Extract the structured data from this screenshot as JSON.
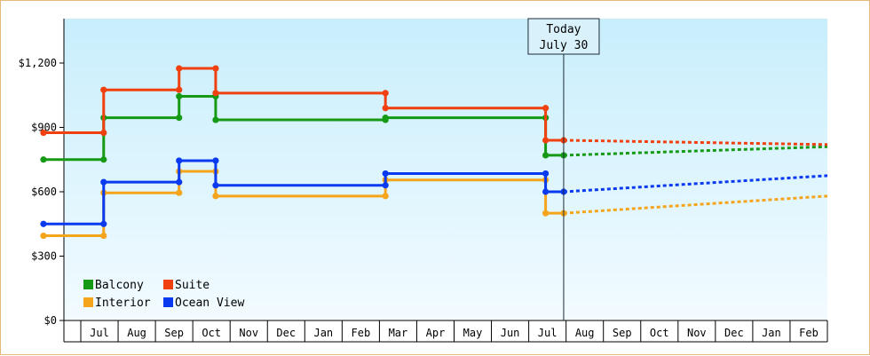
{
  "chart_data": {
    "type": "line",
    "title": "",
    "xlabel": "",
    "ylabel": "",
    "ylim": [
      0,
      1400
    ],
    "y_ticks": [
      {
        "value": 0,
        "label": "$0"
      },
      {
        "value": 300,
        "label": "$300"
      },
      {
        "value": 600,
        "label": "$600"
      },
      {
        "value": 900,
        "label": "$900"
      },
      {
        "value": 1200,
        "label": "$1,200"
      }
    ],
    "x_range": [
      "2025-06-01",
      "2026-03-01"
    ],
    "x_tick_labels": [
      "Jul",
      "Aug",
      "Sep",
      "Oct",
      "Nov",
      "Dec",
      "Jan",
      "Feb",
      "Mar",
      "Apr",
      "May",
      "Jun",
      "Jul",
      "Aug",
      "Sep",
      "Oct",
      "Nov",
      "Dec",
      "Jan",
      "Feb"
    ],
    "today_marker": {
      "date": "2025-07-30",
      "line1": "Today",
      "line2": "July 30"
    },
    "legend_placement": "bottom-left",
    "grid": false,
    "background_gradient": [
      "#c8eefc",
      "#f2fbff"
    ],
    "series": [
      {
        "name": "Balcony",
        "color": "#169a16",
        "points": [
          {
            "date": "2024-06-01",
            "value": 750
          },
          {
            "date": "2024-07-20",
            "value": 750
          },
          {
            "date": "2024-07-20",
            "value": 945
          },
          {
            "date": "2024-09-20",
            "value": 945
          },
          {
            "date": "2024-09-20",
            "value": 1045
          },
          {
            "date": "2024-10-20",
            "value": 1045
          },
          {
            "date": "2024-10-20",
            "value": 935
          },
          {
            "date": "2025-03-06",
            "value": 935
          },
          {
            "date": "2025-03-06",
            "value": 945
          },
          {
            "date": "2025-07-15",
            "value": 945
          },
          {
            "date": "2025-07-15",
            "value": 770
          },
          {
            "date": "2025-07-30",
            "value": 770
          }
        ],
        "forecast": [
          {
            "date": "2025-07-30",
            "value": 770
          },
          {
            "date": "2026-03-01",
            "value": 810
          }
        ]
      },
      {
        "name": "Suite",
        "color": "#f0400f",
        "points": [
          {
            "date": "2024-06-01",
            "value": 875
          },
          {
            "date": "2024-07-20",
            "value": 875
          },
          {
            "date": "2024-07-20",
            "value": 1075
          },
          {
            "date": "2024-09-20",
            "value": 1075
          },
          {
            "date": "2024-09-20",
            "value": 1175
          },
          {
            "date": "2024-10-20",
            "value": 1175
          },
          {
            "date": "2024-10-20",
            "value": 1060
          },
          {
            "date": "2025-03-06",
            "value": 1060
          },
          {
            "date": "2025-03-06",
            "value": 990
          },
          {
            "date": "2025-07-15",
            "value": 990
          },
          {
            "date": "2025-07-15",
            "value": 840
          },
          {
            "date": "2025-07-30",
            "value": 840
          }
        ],
        "forecast": [
          {
            "date": "2025-07-30",
            "value": 840
          },
          {
            "date": "2026-03-01",
            "value": 820
          }
        ]
      },
      {
        "name": "Interior",
        "color": "#f5a51c",
        "points": [
          {
            "date": "2024-06-01",
            "value": 395
          },
          {
            "date": "2024-07-20",
            "value": 395
          },
          {
            "date": "2024-07-20",
            "value": 595
          },
          {
            "date": "2024-09-20",
            "value": 595
          },
          {
            "date": "2024-09-20",
            "value": 695
          },
          {
            "date": "2024-10-20",
            "value": 695
          },
          {
            "date": "2024-10-20",
            "value": 580
          },
          {
            "date": "2025-03-06",
            "value": 580
          },
          {
            "date": "2025-03-06",
            "value": 655
          },
          {
            "date": "2025-07-15",
            "value": 655
          },
          {
            "date": "2025-07-15",
            "value": 500
          },
          {
            "date": "2025-07-30",
            "value": 500
          }
        ],
        "forecast": [
          {
            "date": "2025-07-30",
            "value": 500
          },
          {
            "date": "2026-03-01",
            "value": 580
          }
        ]
      },
      {
        "name": "Ocean View",
        "color": "#0a3af0",
        "points": [
          {
            "date": "2024-06-01",
            "value": 450
          },
          {
            "date": "2024-07-20",
            "value": 450
          },
          {
            "date": "2024-07-20",
            "value": 645
          },
          {
            "date": "2024-09-20",
            "value": 645
          },
          {
            "date": "2024-09-20",
            "value": 745
          },
          {
            "date": "2024-10-20",
            "value": 745
          },
          {
            "date": "2024-10-20",
            "value": 630
          },
          {
            "date": "2025-03-06",
            "value": 630
          },
          {
            "date": "2025-03-06",
            "value": 685
          },
          {
            "date": "2025-07-15",
            "value": 685
          },
          {
            "date": "2025-07-15",
            "value": 600
          },
          {
            "date": "2025-07-30",
            "value": 600
          }
        ],
        "forecast": [
          {
            "date": "2025-07-30",
            "value": 600
          },
          {
            "date": "2026-03-01",
            "value": 675
          }
        ]
      }
    ]
  }
}
